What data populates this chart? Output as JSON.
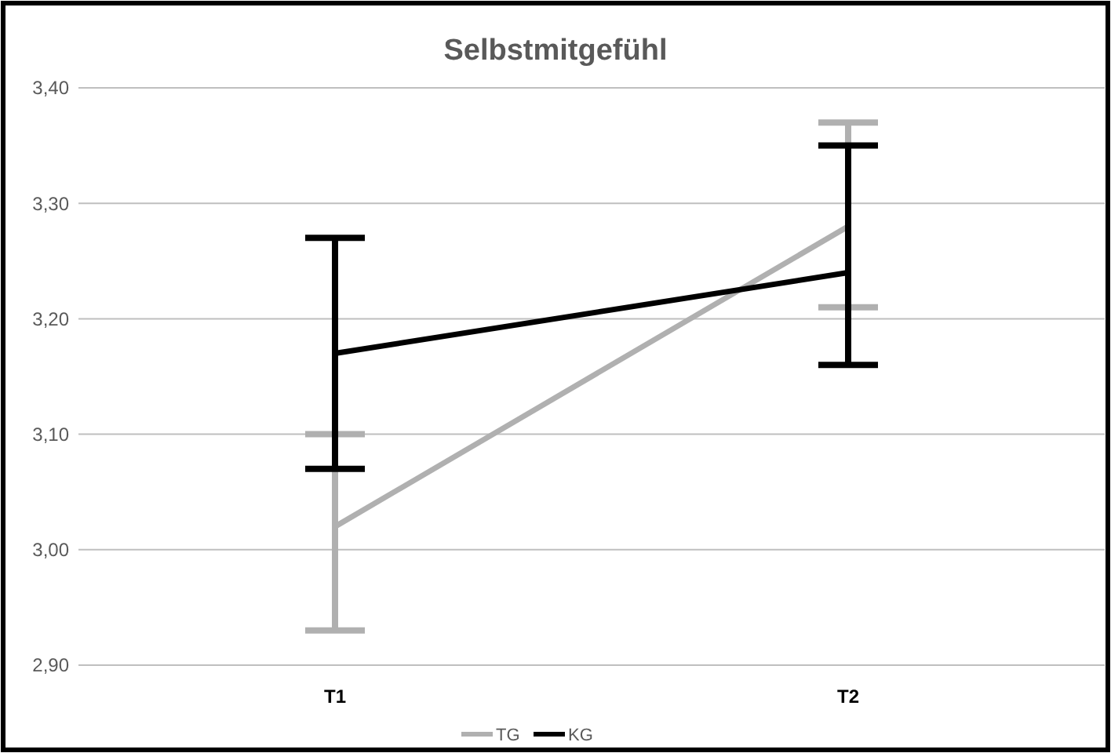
{
  "chart_data": {
    "type": "line",
    "title": "Selbstmitgefühl",
    "categories": [
      "T1",
      "T2"
    ],
    "series": [
      {
        "name": "TG",
        "color": "#b0b0b0",
        "values": [
          3.02,
          3.28
        ],
        "errors": [
          [
            2.93,
            3.1
          ],
          [
            3.21,
            3.37
          ]
        ]
      },
      {
        "name": "KG",
        "color": "#000000",
        "values": [
          3.17,
          3.24
        ],
        "errors": [
          [
            3.07,
            3.27
          ],
          [
            3.16,
            3.35
          ]
        ]
      }
    ],
    "ylim": [
      2.9,
      3.4
    ],
    "yticks": [
      {
        "value": 2.9,
        "label": "2,90"
      },
      {
        "value": 3.0,
        "label": "3,00"
      },
      {
        "value": 3.1,
        "label": "3,10"
      },
      {
        "value": 3.2,
        "label": "3,20"
      },
      {
        "value": 3.3,
        "label": "3,30"
      },
      {
        "value": 3.4,
        "label": "3,40"
      }
    ],
    "grid": "y",
    "legend": "bottom",
    "marker": "none",
    "line_style": "solid"
  }
}
